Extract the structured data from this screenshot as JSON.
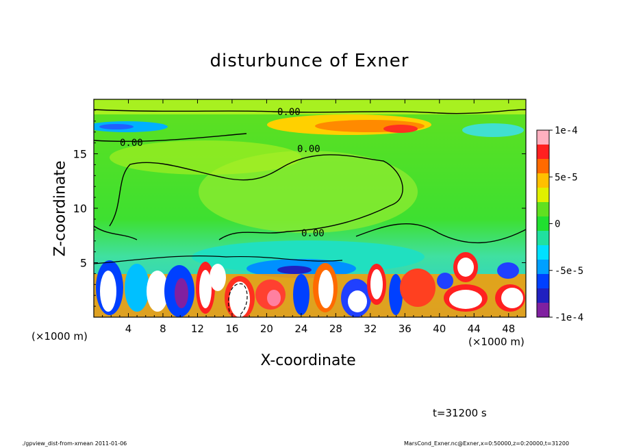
{
  "chart_data": {
    "type": "heatmap",
    "title": "disturbunce of Exner",
    "xlabel": "X-coordinate",
    "ylabel": "Z-coordinate",
    "x_unit_label": "(×1000 m)",
    "x_ticks": [
      4,
      8,
      12,
      16,
      20,
      24,
      28,
      32,
      36,
      40,
      44,
      48
    ],
    "y_ticks": [
      5,
      10,
      15
    ],
    "xlim": [
      0,
      50
    ],
    "ylim": [
      0,
      20
    ],
    "colorbar": {
      "range": [
        -0.0001,
        0.0001
      ],
      "tick_labels": [
        "1e-4",
        "5e-5",
        "0",
        "-5e-5",
        "-1e-4"
      ],
      "tick_values": [
        0.0001,
        5e-05,
        0,
        -5e-05,
        -0.0001
      ],
      "colors": [
        "#ffb0c0",
        "#ff2020",
        "#ff6a00",
        "#ffc000",
        "#e0f000",
        "#60e020",
        "#20e030",
        "#20e0a0",
        "#00e0ff",
        "#00a0ff",
        "#0040ff",
        "#2020c0",
        "#8020a0"
      ]
    },
    "contour_labels": [
      "0.00",
      "0.00",
      "0.00",
      "0.00"
    ],
    "grid": false
  },
  "annotations": {
    "time": "t=31200 s",
    "footer_left": "./gpview_dist-from-xmean  2011-01-06",
    "footer_right": "MarsCond_Exner.nc@Exner,x=0:50000,z=0:20000,t=31200"
  }
}
